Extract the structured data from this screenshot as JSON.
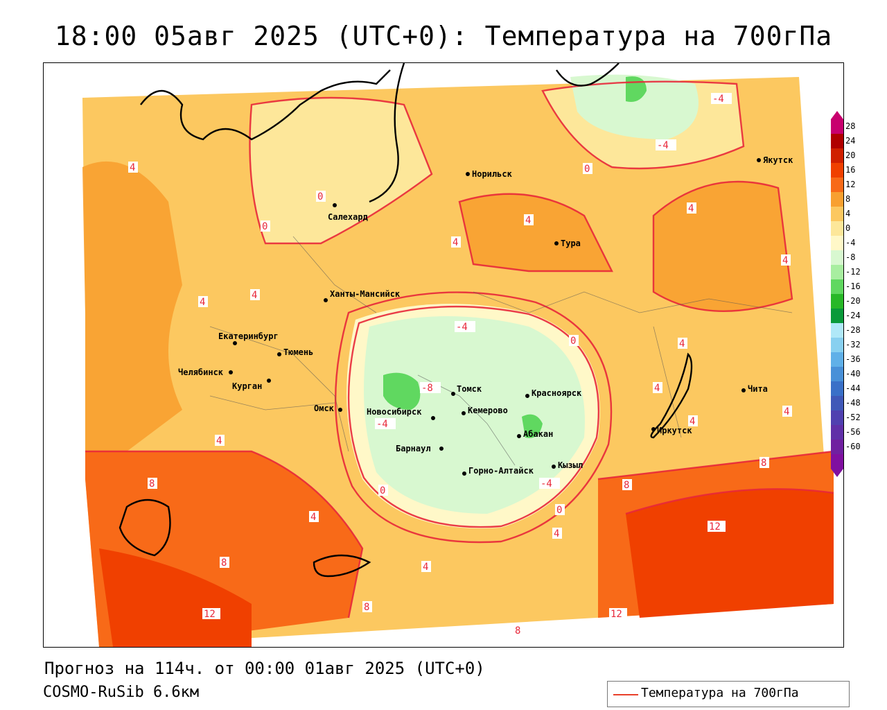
{
  "title": "18:00 05авг 2025 (UTC+0): Температура на 700гПа",
  "footer": {
    "forecast": "Прогноз на 114ч. от 00:00 01авг 2025 (UTC+0)",
    "model": "COSMO-RuSib 6.6км"
  },
  "legend": {
    "label": "Температура на 700гПа",
    "color": "#e8402a"
  },
  "colorbar": {
    "levels": [
      "28",
      "24",
      "20",
      "16",
      "12",
      "8",
      "4",
      "0",
      "-4",
      "-8",
      "-12",
      "-16",
      "-20",
      "-24",
      "-28",
      "-32",
      "-36",
      "-40",
      "-44",
      "-48",
      "-52",
      "-56",
      "-60"
    ],
    "colors": [
      "#c8006e",
      "#b00000",
      "#d02000",
      "#f04000",
      "#f86a18",
      "#f8a030",
      "#fcc860",
      "#fde79a",
      "#fff8c8",
      "#d8f8d0",
      "#a8eea0",
      "#60d860",
      "#28b828",
      "#0a9a3a",
      "#b0e8f8",
      "#88d0f0",
      "#60b0e8",
      "#4890d8",
      "#3a70c8",
      "#4058b8",
      "#5040b0",
      "#6030a8",
      "#7020a0",
      "#8010a0"
    ]
  },
  "cities": [
    {
      "name": "Норильск"
    },
    {
      "name": "Якутск"
    },
    {
      "name": "Салехард"
    },
    {
      "name": "Тура"
    },
    {
      "name": "Ханты-Мансийск"
    },
    {
      "name": "Екатеринбург"
    },
    {
      "name": "Тюмень"
    },
    {
      "name": "Челябинск"
    },
    {
      "name": "Курган"
    },
    {
      "name": "Омск"
    },
    {
      "name": "Томск"
    },
    {
      "name": "Красноярск"
    },
    {
      "name": "Новосибирск"
    },
    {
      "name": "Кемерово"
    },
    {
      "name": "Абакан"
    },
    {
      "name": "Барнаул"
    },
    {
      "name": "Кызыл"
    },
    {
      "name": "Горно-Алтайск"
    },
    {
      "name": "Иркутск"
    },
    {
      "name": "Чита"
    }
  ],
  "isotherm_labels": [
    "4",
    "0",
    "-4",
    "-8",
    "8",
    "12"
  ]
}
